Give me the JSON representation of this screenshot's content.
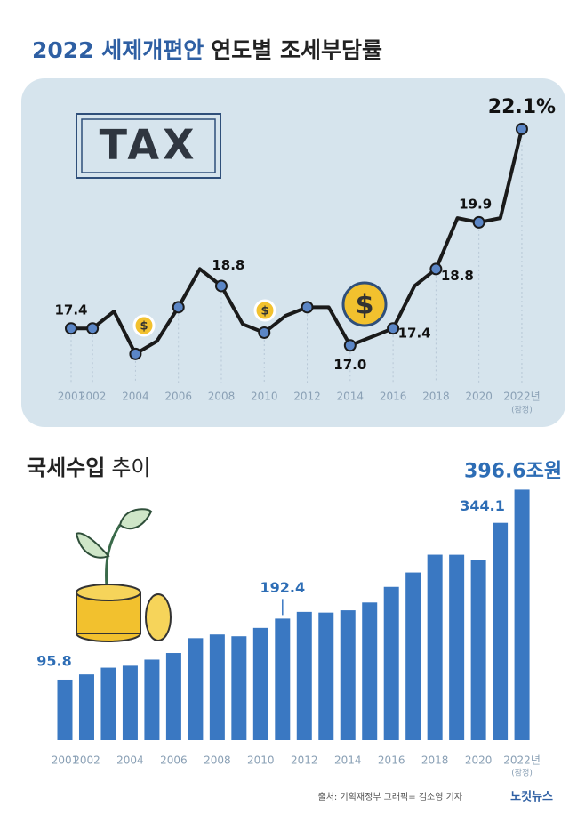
{
  "header": {
    "title_highlight": "2022 세제개편안",
    "title_rest": "연도별 조세부담률"
  },
  "decor": {
    "tax": "TAX",
    "dollar": "$"
  },
  "chart_data": [
    {
      "type": "line",
      "categories": [
        "2001",
        "2002",
        null,
        "2004",
        null,
        "2006",
        null,
        "2008",
        null,
        "2010",
        null,
        "2012",
        null,
        "2014",
        null,
        "2016",
        null,
        "2018",
        null,
        "2020",
        null,
        "2022년"
      ],
      "category_note": "(잠정)",
      "values": [
        17.4,
        17.4,
        17.8,
        16.8,
        17.1,
        17.9,
        18.8,
        18.4,
        17.5,
        17.3,
        17.7,
        17.9,
        17.9,
        17.0,
        17.2,
        17.4,
        18.4,
        18.8,
        20.0,
        19.9,
        20.0,
        22.1
      ],
      "value_labels": [
        "17.4",
        null,
        null,
        null,
        null,
        null,
        "18.8",
        null,
        null,
        null,
        null,
        null,
        null,
        "17.0",
        null,
        "17.4",
        null,
        "18.8",
        null,
        "19.9",
        null,
        "22.1%"
      ],
      "color": "#1a1a1a",
      "marker_color": "#5b86c6",
      "ylim": [
        16,
        23
      ]
    },
    {
      "type": "bar",
      "title_bold": "국세수입",
      "title_rest": "추이",
      "categories": [
        "2001",
        "2002",
        null,
        "2004",
        null,
        "2006",
        null,
        "2008",
        null,
        "2010",
        null,
        "2012",
        null,
        "2014",
        null,
        "2016",
        null,
        "2018",
        null,
        "2020",
        null,
        "2022년"
      ],
      "category_note": "(잠정)",
      "values": [
        95.8,
        104.0,
        114.7,
        117.8,
        127.5,
        138.0,
        161.5,
        167.3,
        164.5,
        177.7,
        192.4,
        203.0,
        201.9,
        205.5,
        217.9,
        242.6,
        265.4,
        293.6,
        293.5,
        285.5,
        344.1,
        396.6
      ],
      "value_labels": [
        "95.8",
        null,
        null,
        null,
        null,
        null,
        null,
        null,
        null,
        null,
        "192.4",
        null,
        null,
        null,
        null,
        null,
        null,
        null,
        null,
        null,
        "344.1",
        "396.6조원"
      ],
      "color": "#3a78c2",
      "ylim": [
        0,
        400
      ]
    }
  ],
  "footer": {
    "source": "출처: 기획재정부   그래픽= 김소영 기자",
    "logo": "노컷뉴스"
  }
}
